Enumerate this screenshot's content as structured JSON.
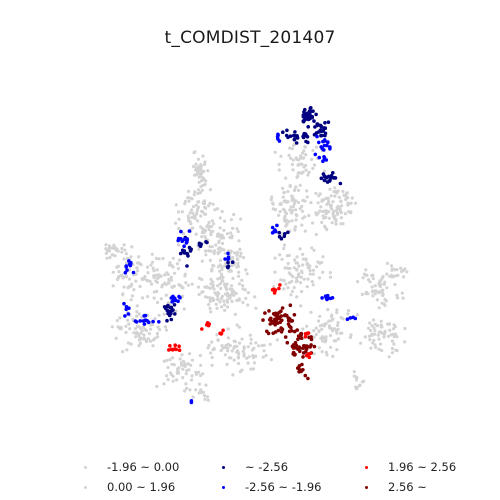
{
  "title": "t_COMDIST_201407",
  "colors": {
    "light_gray": "#d3d3d3",
    "blue": "#0000ff",
    "navy": "#000080",
    "red": "#ff0000",
    "dark_red": "#800000"
  },
  "legend": [
    {
      "label": "-1.96 ~ 0.00",
      "color": "#d3d3d3",
      "key": "light_gray"
    },
    {
      "label": "~ -2.56",
      "color": "#000080",
      "key": "navy"
    },
    {
      "label": "1.96 ~ 2.56",
      "color": "#ff0000",
      "key": "red"
    },
    {
      "label": "0.00 ~ 1.96",
      "color": "#d3d3d3",
      "key": "light_gray"
    },
    {
      "label": "-2.56 ~ -1.96",
      "color": "#0000ff",
      "key": "blue"
    },
    {
      "label": "2.56 ~",
      "color": "#800000",
      "key": "dark_red"
    }
  ]
}
